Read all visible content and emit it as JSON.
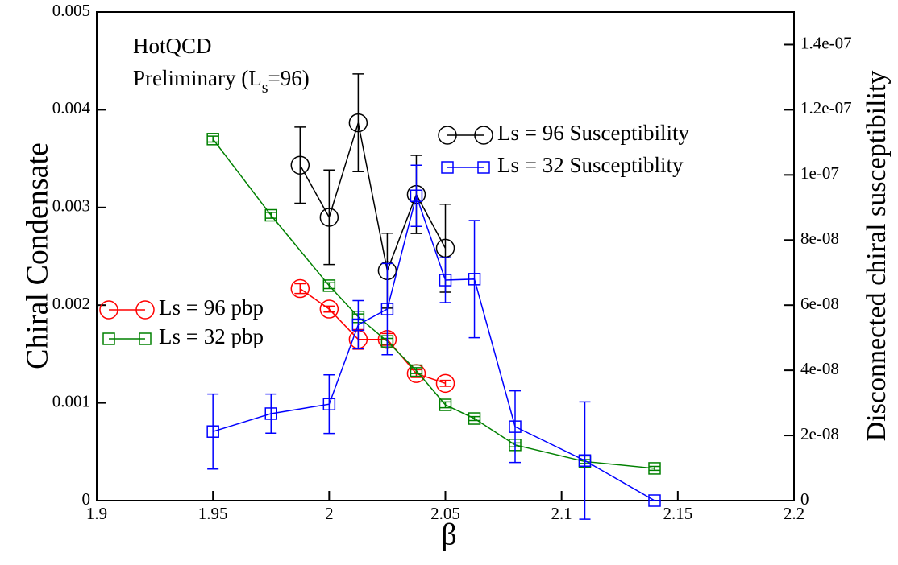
{
  "chart_data": {
    "type": "line",
    "x_label": "β",
    "y_label": "Chiral Condensate",
    "y2_label": "Disconnected chiral susceptibility",
    "annotation": {
      "line1": "HotQCD",
      "line2": [
        "Preliminary (L",
        "s",
        "=96)"
      ]
    },
    "xlim": [
      1.9,
      2.2
    ],
    "xticks": [
      1.9,
      1.95,
      2,
      2.05,
      2.1,
      2.15,
      2.2
    ],
    "ylim": [
      0,
      0.005
    ],
    "yticks": [
      0,
      0.001,
      0.002,
      0.003,
      0.004,
      0.005
    ],
    "y2lim": [
      0,
      1.5e-07
    ],
    "y2ticks": [
      0,
      {
        "value": 2e-08,
        "label": "2e-08"
      },
      {
        "value": 4e-08,
        "label": "4e-08"
      },
      {
        "value": 6e-08,
        "label": "6e-08"
      },
      {
        "value": 8e-08,
        "label": "8e-08"
      },
      {
        "value": 1e-07,
        "label": "1e-07"
      },
      {
        "value": 1.2e-07,
        "label": "1.2e-07"
      },
      {
        "value": 1.4e-07,
        "label": "1.4e-07"
      }
    ],
    "series": [
      {
        "name": "Ls = 96 pbp",
        "color": "#ff0000",
        "marker": "circle",
        "axis": "y",
        "x": [
          1.9875,
          2.0,
          2.0125,
          2.025,
          2.0375,
          2.05
        ],
        "values": [
          0.00217,
          0.00196,
          0.00165,
          0.00165,
          0.0013,
          0.0012
        ],
        "errors": [
          5e-05,
          3e-05,
          0.0001,
          6e-05,
          4e-05,
          3e-05
        ]
      },
      {
        "name": "Ls = 32 pbp",
        "color": "#008000",
        "marker": "square",
        "axis": "y",
        "x": [
          1.95,
          1.975,
          2.0,
          2.0125,
          2.025,
          2.0375,
          2.05,
          2.0625,
          2.08,
          2.11,
          2.14
        ],
        "values": [
          0.0037,
          0.00292,
          0.0022,
          0.00188,
          0.00163,
          0.00133,
          0.00098,
          0.00084,
          0.00057,
          0.0004,
          0.00033
        ],
        "errors": [
          3e-05,
          3e-05,
          3e-05,
          3e-05,
          3e-05,
          3e-05,
          3e-05,
          2e-05,
          2e-05,
          2e-05,
          2e-05
        ]
      },
      {
        "name": "Ls = 96 Susceptibility",
        "color": "#000000",
        "marker": "circle",
        "axis": "y2",
        "x": [
          1.9875,
          2.0,
          2.0125,
          2.025,
          2.0375,
          2.05
        ],
        "values": [
          1.03e-07,
          8.7e-08,
          1.16e-07,
          7.06e-08,
          9.4e-08,
          7.75e-08
        ],
        "errors": [
          1.17e-08,
          1.45e-08,
          1.5e-08,
          1.15e-08,
          1.2e-08,
          1.35e-08
        ]
      },
      {
        "name": "Ls = 32 Susceptiblity",
        "color": "#0000ff",
        "marker": "square",
        "axis": "y2",
        "x": [
          1.95,
          1.975,
          2.0,
          2.0125,
          2.025,
          2.0375,
          2.05,
          2.0625,
          2.08,
          2.11,
          2.14
        ],
        "values": [
          2.12e-08,
          2.67e-08,
          2.96e-08,
          5.4e-08,
          5.88e-08,
          9.36e-08,
          6.77e-08,
          6.8e-08,
          2.27e-08,
          1.23e-08,
          0
        ],
        "errors": [
          1.15e-08,
          6e-09,
          9e-09,
          7.4e-09,
          1.4e-08,
          9.4e-09,
          6.9e-09,
          1.8e-08,
          1.1e-08,
          1.8e-08,
          0
        ]
      }
    ]
  }
}
